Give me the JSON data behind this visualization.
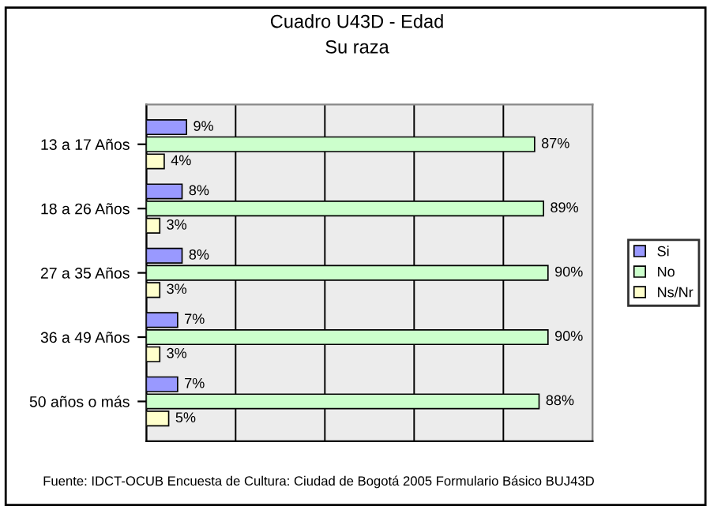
{
  "chart_data": {
    "type": "bar",
    "orientation": "horizontal",
    "title": "Cuadro U43D - Edad",
    "subtitle": "Su raza",
    "categories": [
      "13 a 17 Años",
      "18 a 26 Años",
      "27 a 35 Años",
      "36 a 49 Años",
      "50 años o más"
    ],
    "series": [
      {
        "name": "Si",
        "color": "#9999ff",
        "values": [
          9,
          8,
          8,
          7,
          7
        ],
        "value_labels": [
          "9%",
          "8%",
          "8%",
          "7%",
          "7%"
        ]
      },
      {
        "name": "No",
        "color": "#ccffcc",
        "values": [
          87,
          89,
          90,
          90,
          88
        ],
        "value_labels": [
          "87%",
          "89%",
          "90%",
          "90%",
          "88%"
        ]
      },
      {
        "name": "Ns/Nr",
        "color": "#ffffcc",
        "values": [
          4,
          3,
          3,
          3,
          5
        ],
        "value_labels": [
          "4%",
          "3%",
          "3%",
          "3%",
          "5%"
        ]
      }
    ],
    "xlim": [
      0,
      100
    ],
    "xticks": [
      {
        "value": 0,
        "label": null
      },
      {
        "value": 20,
        "label": null
      },
      {
        "value": 40,
        "label": null
      },
      {
        "value": 60,
        "label": null
      },
      {
        "value": 80,
        "label": null
      },
      {
        "value": 100,
        "label": null
      }
    ],
    "grid": "x",
    "legend": "right",
    "tick_labels": "y",
    "annotations": [
      "Fuente: IDCT-OCUB Encuesta de Cultura: Ciudad de Bogotá 2005 Formulario Básico BUJ43D"
    ]
  }
}
